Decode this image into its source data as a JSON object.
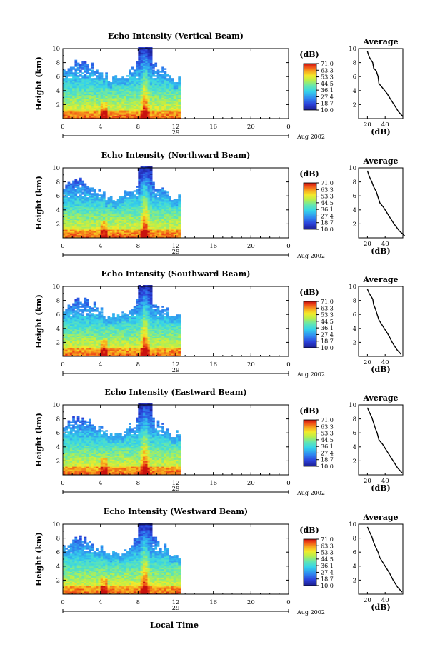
{
  "labels": {
    "xlabel": "Local Time",
    "ylabel": "Height (km)",
    "colorbar_unit": "(dB)",
    "average_title": "Average",
    "average_xlabel": "(dB)",
    "date": "Aug 2002"
  },
  "colors": {
    "low": "#1c1f8f",
    "mid": "#35d3ea",
    "high": "#c9120f"
  },
  "chart_data": [
    {
      "type": "heatmap",
      "title": "Echo Intensity (Vertical Beam)",
      "xlabel": "Local Time",
      "ylabel": "Height (km)",
      "xlim": [
        0,
        24
      ],
      "ylim": [
        0,
        10
      ],
      "x_ticks": [
        "0",
        "4",
        "8",
        "12",
        "16",
        "20",
        "0"
      ],
      "y_ticks": [
        "2",
        "4",
        "6",
        "8",
        "10"
      ],
      "day_label": "29",
      "date_label": "Aug 2002",
      "data_end_hour": 12.5,
      "colorbar_label": "(dB)",
      "colorbar_ticks": [
        "71.0",
        "63.3",
        "53.3",
        "44.5",
        "36.1",
        "27.4",
        "18.7",
        "10.0"
      ],
      "average": {
        "title": "Average",
        "xlabel": "(dB)",
        "x_ticks": [
          "20",
          "40"
        ],
        "y_ticks": [
          "2",
          "4",
          "6",
          "8",
          "10"
        ],
        "profile": [
          [
            60,
            0.3
          ],
          [
            55,
            1.0
          ],
          [
            50,
            2.0
          ],
          [
            45,
            3.0
          ],
          [
            42,
            3.6
          ],
          [
            37,
            4.4
          ],
          [
            33,
            5.0
          ],
          [
            32,
            6.0
          ],
          [
            30,
            6.8
          ],
          [
            27,
            7.2
          ],
          [
            26,
            8.0
          ],
          [
            22,
            8.8
          ],
          [
            20,
            9.6
          ]
        ]
      }
    },
    {
      "type": "heatmap",
      "title": "Echo Intensity (Northward Beam)",
      "xlabel": "Local Time",
      "ylabel": "Height (km)",
      "xlim": [
        0,
        24
      ],
      "ylim": [
        0,
        10
      ],
      "x_ticks": [
        "0",
        "4",
        "8",
        "12",
        "16",
        "20",
        "0"
      ],
      "y_ticks": [
        "2",
        "4",
        "6",
        "8",
        "10"
      ],
      "day_label": "29",
      "date_label": "Aug 2002",
      "data_end_hour": 12.5,
      "colorbar_label": "(dB)",
      "colorbar_ticks": [
        "71.0",
        "63.3",
        "53.3",
        "44.5",
        "36.1",
        "27.4",
        "18.7",
        "10.0"
      ],
      "average": {
        "title": "Average",
        "xlabel": "(dB)",
        "x_ticks": [
          "20",
          "40"
        ],
        "y_ticks": [
          "2",
          "4",
          "6",
          "8",
          "10"
        ],
        "profile": [
          [
            62,
            0.3
          ],
          [
            56,
            1.0
          ],
          [
            50,
            2.0
          ],
          [
            46,
            2.8
          ],
          [
            42,
            3.6
          ],
          [
            38,
            4.4
          ],
          [
            34,
            5.0
          ],
          [
            32,
            5.8
          ],
          [
            30,
            6.6
          ],
          [
            27,
            7.3
          ],
          [
            25,
            8.0
          ],
          [
            22,
            8.8
          ],
          [
            20,
            9.6
          ]
        ]
      }
    },
    {
      "type": "heatmap",
      "title": "Echo Intensity (Southward Beam)",
      "xlabel": "Local Time",
      "ylabel": "Height (km)",
      "xlim": [
        0,
        24
      ],
      "ylim": [
        0,
        10
      ],
      "x_ticks": [
        "0",
        "4",
        "8",
        "12",
        "16",
        "20",
        "0"
      ],
      "y_ticks": [
        "2",
        "4",
        "6",
        "8",
        "10"
      ],
      "day_label": "29",
      "date_label": "Aug 2002",
      "data_end_hour": 12.5,
      "colorbar_label": "(dB)",
      "colorbar_ticks": [
        "71.0",
        "63.3",
        "53.3",
        "44.5",
        "36.1",
        "27.4",
        "18.7",
        "10.0"
      ],
      "average": {
        "title": "Average",
        "xlabel": "(dB)",
        "x_ticks": [
          "20",
          "40"
        ],
        "y_ticks": [
          "2",
          "4",
          "6",
          "8",
          "10"
        ],
        "profile": [
          [
            58,
            0.3
          ],
          [
            53,
            1.0
          ],
          [
            48,
            2.0
          ],
          [
            44,
            3.0
          ],
          [
            40,
            3.8
          ],
          [
            36,
            4.6
          ],
          [
            33,
            5.2
          ],
          [
            31,
            6.0
          ],
          [
            29,
            6.8
          ],
          [
            27,
            7.4
          ],
          [
            26,
            8.2
          ],
          [
            22,
            9.0
          ],
          [
            20,
            9.6
          ]
        ]
      }
    },
    {
      "type": "heatmap",
      "title": "Echo Intensity (Eastward Beam)",
      "xlabel": "Local Time",
      "ylabel": "Height (km)",
      "xlim": [
        0,
        24
      ],
      "ylim": [
        0,
        10
      ],
      "x_ticks": [
        "0",
        "4",
        "8",
        "12",
        "16",
        "20",
        "0"
      ],
      "y_ticks": [
        "2",
        "4",
        "6",
        "8",
        "10"
      ],
      "day_label": "29",
      "date_label": "Aug 2002",
      "data_end_hour": 12.5,
      "colorbar_label": "(dB)",
      "colorbar_ticks": [
        "71.0",
        "63.3",
        "53.3",
        "44.5",
        "36.1",
        "27.4",
        "18.7",
        "10.0"
      ],
      "average": {
        "title": "Average",
        "xlabel": "(dB)",
        "x_ticks": [
          "20",
          "40"
        ],
        "y_ticks": [
          "2",
          "4",
          "6",
          "8",
          "10"
        ],
        "profile": [
          [
            59,
            0.3
          ],
          [
            54,
            1.0
          ],
          [
            49,
            2.0
          ],
          [
            45,
            2.8
          ],
          [
            41,
            3.6
          ],
          [
            37,
            4.4
          ],
          [
            33,
            5.0
          ],
          [
            31,
            6.0
          ],
          [
            29,
            6.6
          ],
          [
            27,
            7.4
          ],
          [
            25,
            8.2
          ],
          [
            22,
            9.0
          ],
          [
            20,
            9.6
          ]
        ]
      }
    },
    {
      "type": "heatmap",
      "title": "Echo Intensity (Westward Beam)",
      "xlabel": "Local Time",
      "ylabel": "Height (km)",
      "xlim": [
        0,
        24
      ],
      "ylim": [
        0,
        10
      ],
      "x_ticks": [
        "0",
        "4",
        "8",
        "12",
        "16",
        "20",
        "0"
      ],
      "y_ticks": [
        "2",
        "4",
        "6",
        "8",
        "10"
      ],
      "day_label": "29",
      "date_label": "Aug 2002",
      "data_end_hour": 12.5,
      "colorbar_label": "(dB)",
      "colorbar_ticks": [
        "71.0",
        "63.3",
        "53.3",
        "44.5",
        "36.1",
        "27.4",
        "18.7",
        "10.0"
      ],
      "average": {
        "title": "Average",
        "xlabel": "(dB)",
        "x_ticks": [
          "20",
          "40"
        ],
        "y_ticks": [
          "2",
          "4",
          "6",
          "8",
          "10"
        ],
        "profile": [
          [
            59,
            0.3
          ],
          [
            54,
            1.0
          ],
          [
            49,
            2.0
          ],
          [
            45,
            3.0
          ],
          [
            41,
            3.8
          ],
          [
            37,
            4.6
          ],
          [
            34,
            5.2
          ],
          [
            32,
            6.0
          ],
          [
            29,
            6.8
          ],
          [
            27,
            7.4
          ],
          [
            25,
            8.2
          ],
          [
            22,
            9.0
          ],
          [
            20,
            9.6
          ]
        ]
      }
    }
  ]
}
